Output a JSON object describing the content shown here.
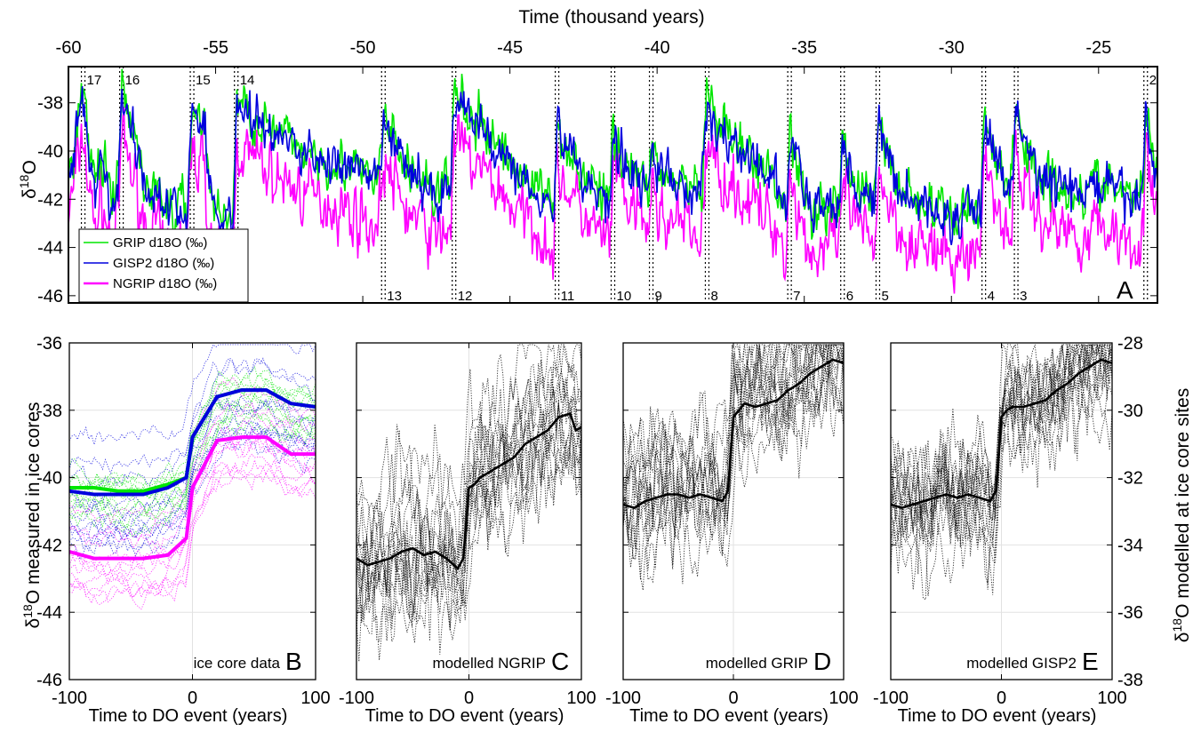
{
  "chart_data": [
    {
      "panel": "A",
      "type": "line",
      "top_axis_label": "Time (thousand years)",
      "ylabel_base": "δ",
      "ylabel_sup": "18",
      "ylabel_tail": "O",
      "xlim": [
        -60,
        -23
      ],
      "ylim": [
        -46.3,
        -36.5
      ],
      "xticks": [
        -60,
        -55,
        -50,
        -45,
        -40,
        -35,
        -30,
        -25
      ],
      "yticks": [
        -38,
        -40,
        -42,
        -44,
        -46
      ],
      "legend": [
        "GRIP d18O (‰)",
        "GISP2 d18O (‰)",
        "NGRIP d18O (‰)"
      ],
      "colors": {
        "GRIP": "#00e600",
        "GISP2": "#0000dd",
        "NGRIP": "#ff00ff"
      },
      "offsets": {
        "GRIP": 0.1,
        "GISP2": 0,
        "NGRIP": -1.7
      },
      "events": [
        {
          "x": -59.5,
          "label": "17",
          "label_pos": "top"
        },
        {
          "x": -58.2,
          "label": "16",
          "label_pos": "top"
        },
        {
          "x": -55.8,
          "label": "15",
          "label_pos": "top"
        },
        {
          "x": -54.3,
          "label": "14",
          "label_pos": "top"
        },
        {
          "x": -49.3,
          "label": "13",
          "label_pos": "bottom"
        },
        {
          "x": -46.9,
          "label": "12",
          "label_pos": "bottom"
        },
        {
          "x": -43.4,
          "label": "11",
          "label_pos": "bottom"
        },
        {
          "x": -41.5,
          "label": "10",
          "label_pos": "bottom"
        },
        {
          "x": -40.2,
          "label": "9",
          "label_pos": "bottom"
        },
        {
          "x": -38.3,
          "label": "8",
          "label_pos": "bottom"
        },
        {
          "x": -35.5,
          "label": "7",
          "label_pos": "bottom"
        },
        {
          "x": -33.7,
          "label": "6",
          "label_pos": "bottom"
        },
        {
          "x": -32.5,
          "label": "5",
          "label_pos": "bottom"
        },
        {
          "x": -28.9,
          "label": "4",
          "label_pos": "bottom"
        },
        {
          "x": -27.8,
          "label": "3",
          "label_pos": "bottom"
        },
        {
          "x": -23.4,
          "label": "2",
          "label_pos": "top"
        }
      ],
      "series": [
        {
          "name": "GISP2",
          "x": [
            -60,
            -59.7,
            -59.5,
            -59.3,
            -59.1,
            -58.9,
            -58.7,
            -58.5,
            -58.3,
            -58.2,
            -58.0,
            -57.8,
            -57.6,
            -57.4,
            -57.2,
            -57.0,
            -56.8,
            -56.6,
            -56.4,
            -56.2,
            -56.0,
            -55.8,
            -55.6,
            -55.4,
            -55.2,
            -55.0,
            -54.8,
            -54.6,
            -54.4,
            -54.3,
            -54.0,
            -53.5,
            -53.0,
            -52.5,
            -52.0,
            -51.5,
            -51.0,
            -50.5,
            -50.0,
            -49.5,
            -49.3,
            -49.0,
            -48.5,
            -48.0,
            -47.5,
            -47.0,
            -46.9,
            -46.5,
            -46.0,
            -45.5,
            -45.0,
            -44.5,
            -44.0,
            -43.5,
            -43.4,
            -43.0,
            -42.5,
            -42.0,
            -41.6,
            -41.5,
            -41.2,
            -40.9,
            -40.6,
            -40.3,
            -40.2,
            -40.0,
            -39.5,
            -39.0,
            -38.5,
            -38.3,
            -38.0,
            -37.5,
            -37.0,
            -36.5,
            -36.0,
            -35.6,
            -35.5,
            -35.3,
            -35.0,
            -34.7,
            -34.4,
            -34.1,
            -33.8,
            -33.7,
            -33.5,
            -33.2,
            -32.9,
            -32.6,
            -32.5,
            -32.2,
            -31.8,
            -31.4,
            -31.0,
            -30.6,
            -30.2,
            -29.8,
            -29.4,
            -29.0,
            -28.9,
            -28.6,
            -28.3,
            -28.0,
            -27.8,
            -27.5,
            -27.0,
            -26.5,
            -26.0,
            -25.5,
            -25.0,
            -24.5,
            -24.0,
            -23.5,
            -23.4,
            -23.2,
            -23.0
          ],
          "y": [
            -41.0,
            -39.0,
            -37.5,
            -40.0,
            -41.5,
            -40.2,
            -41.3,
            -42.5,
            -41.0,
            -37.6,
            -38.4,
            -39.4,
            -40.3,
            -41.3,
            -42.0,
            -41.3,
            -42.6,
            -42.1,
            -42.9,
            -42.3,
            -42.9,
            -38.2,
            -38.7,
            -38.6,
            -41.6,
            -42.6,
            -42.9,
            -42.4,
            -43.0,
            -38.0,
            -38.4,
            -38.8,
            -39.4,
            -39.7,
            -40.0,
            -40.3,
            -40.5,
            -40.8,
            -41.1,
            -41.6,
            -38.7,
            -39.6,
            -40.8,
            -41.3,
            -41.9,
            -41.4,
            -37.6,
            -38.5,
            -39.1,
            -39.7,
            -40.5,
            -41.1,
            -41.6,
            -42.5,
            -38.9,
            -40.0,
            -41.0,
            -41.8,
            -42.2,
            -39.2,
            -40.1,
            -40.7,
            -41.2,
            -41.6,
            -39.7,
            -40.8,
            -41.3,
            -41.5,
            -42.0,
            -38.0,
            -39.0,
            -39.6,
            -40.3,
            -40.8,
            -41.4,
            -42.4,
            -39.3,
            -40.2,
            -41.8,
            -42.6,
            -42.4,
            -42.1,
            -42.6,
            -39.4,
            -40.5,
            -41.6,
            -41.9,
            -42.4,
            -38.8,
            -40.2,
            -41.4,
            -42.0,
            -42.1,
            -42.7,
            -42.6,
            -43.0,
            -42.3,
            -42.5,
            -38.4,
            -39.9,
            -41.1,
            -41.8,
            -38.3,
            -39.9,
            -41.0,
            -41.4,
            -41.6,
            -41.8,
            -41.3,
            -41.7,
            -41.9,
            -42.0,
            -38.1,
            -40.3,
            -41.3
          ]
        }
      ]
    },
    {
      "panel": "B",
      "type": "line",
      "panel_label": "B",
      "annotation": "ice core data",
      "xlabel": "Time to DO event (years)",
      "ylabel_base": "δ",
      "ylabel_sup": "18",
      "ylabel_tail": "O measured in ice cores",
      "xlim": [
        -100,
        100
      ],
      "ylim": [
        -46,
        -36
      ],
      "xticks": [
        -100,
        0,
        100
      ],
      "yticks": [
        -36,
        -38,
        -40,
        -42,
        -44,
        -46
      ],
      "series": [
        {
          "name": "GRIP",
          "color": "#00e600",
          "x": [
            -100,
            -80,
            -60,
            -40,
            -20,
            -5,
            0,
            20,
            40,
            60,
            80,
            100
          ],
          "y": [
            -40.3,
            -40.3,
            -40.4,
            -40.4,
            -40.2,
            -40.0,
            -38.8,
            -37.6,
            -37.4,
            -37.4,
            -37.8,
            -37.9
          ]
        },
        {
          "name": "GISP2",
          "color": "#0000dd",
          "x": [
            -100,
            -80,
            -60,
            -40,
            -20,
            -5,
            0,
            20,
            40,
            60,
            80,
            100
          ],
          "y": [
            -40.4,
            -40.5,
            -40.5,
            -40.5,
            -40.3,
            -40.0,
            -38.8,
            -37.6,
            -37.4,
            -37.4,
            -37.8,
            -37.9
          ]
        },
        {
          "name": "NGRIP",
          "color": "#ff00ff",
          "x": [
            -100,
            -80,
            -60,
            -40,
            -20,
            -5,
            0,
            20,
            40,
            60,
            80,
            100
          ],
          "y": [
            -42.2,
            -42.4,
            -42.4,
            -42.4,
            -42.3,
            -41.8,
            -40.3,
            -38.9,
            -38.8,
            -38.8,
            -39.3,
            -39.3
          ]
        }
      ]
    },
    {
      "panel": "C",
      "type": "line",
      "panel_label": "C",
      "annotation": "modelled NGRIP",
      "xlabel": "Time to DO event (years)",
      "xlim": [
        -100,
        100
      ],
      "ylim": [
        -46,
        -36
      ],
      "xticks": [
        -100,
        0,
        100
      ],
      "series": [
        {
          "name": "mean",
          "color": "#000000",
          "x": [
            -100,
            -90,
            -80,
            -70,
            -60,
            -50,
            -40,
            -30,
            -20,
            -10,
            -5,
            0,
            5,
            10,
            20,
            30,
            40,
            50,
            60,
            70,
            80,
            90,
            95,
            100
          ],
          "y": [
            -42.4,
            -42.6,
            -42.5,
            -42.4,
            -42.2,
            -42.1,
            -42.3,
            -42.2,
            -42.4,
            -42.7,
            -42.4,
            -40.3,
            -40.2,
            -40.0,
            -39.8,
            -39.6,
            -39.4,
            -39.0,
            -38.8,
            -38.6,
            -38.2,
            -38.1,
            -38.6,
            -38.5
          ]
        }
      ]
    },
    {
      "panel": "D",
      "type": "line",
      "panel_label": "D",
      "annotation": "modelled GRIP",
      "xlabel": "Time to DO event (years)",
      "xlim": [
        -100,
        100
      ],
      "ylim": [
        -38,
        -28
      ],
      "xticks": [
        -100,
        0,
        100
      ],
      "series": [
        {
          "name": "mean",
          "color": "#000000",
          "x": [
            -100,
            -90,
            -80,
            -70,
            -60,
            -50,
            -40,
            -30,
            -20,
            -10,
            -5,
            0,
            5,
            10,
            20,
            30,
            40,
            50,
            60,
            70,
            80,
            90,
            100
          ],
          "y": [
            -32.8,
            -32.9,
            -32.7,
            -32.6,
            -32.5,
            -32.5,
            -32.6,
            -32.5,
            -32.6,
            -32.7,
            -32.4,
            -30.2,
            -30.0,
            -29.8,
            -29.9,
            -29.8,
            -29.7,
            -29.4,
            -29.2,
            -28.9,
            -28.7,
            -28.5,
            -28.6
          ]
        }
      ]
    },
    {
      "panel": "E",
      "type": "line",
      "panel_label": "E",
      "annotation": "modelled GISP2",
      "xlabel": "Time to DO event (years)",
      "ylabel_base": "δ",
      "ylabel_sup": "18",
      "ylabel_tail": "O modelled at ice core sites",
      "xlim": [
        -100,
        100
      ],
      "ylim": [
        -38,
        -28
      ],
      "xticks": [
        -100,
        0,
        100
      ],
      "yticks": [
        -28,
        -30,
        -32,
        -34,
        -36,
        -38
      ],
      "series": [
        {
          "name": "mean",
          "color": "#000000",
          "x": [
            -100,
            -90,
            -80,
            -70,
            -60,
            -50,
            -40,
            -30,
            -20,
            -10,
            -5,
            0,
            5,
            10,
            20,
            30,
            40,
            50,
            60,
            70,
            80,
            90,
            100
          ],
          "y": [
            -32.8,
            -32.9,
            -32.8,
            -32.7,
            -32.6,
            -32.5,
            -32.6,
            -32.5,
            -32.6,
            -32.7,
            -32.4,
            -30.2,
            -30.0,
            -29.9,
            -29.9,
            -29.8,
            -29.7,
            -29.4,
            -29.2,
            -28.9,
            -28.7,
            -28.5,
            -28.6
          ]
        }
      ]
    }
  ]
}
